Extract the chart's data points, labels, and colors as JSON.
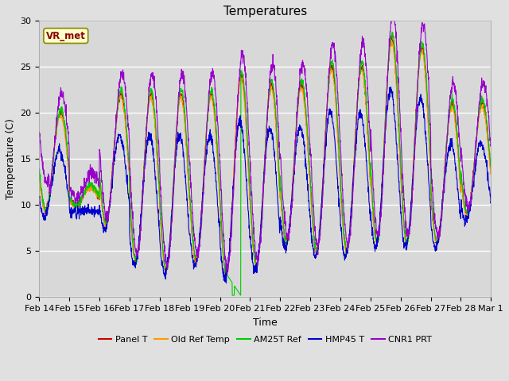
{
  "title": "Temperatures",
  "xlabel": "Time",
  "ylabel": "Temperature (C)",
  "ylim": [
    0,
    30
  ],
  "annotation": "VR_met",
  "fig_bg_color": "#e0e0e0",
  "plot_bg_color": "#d8d8d8",
  "series_colors": [
    "#cc0000",
    "#ff9900",
    "#00cc00",
    "#0000cc",
    "#9900cc"
  ],
  "series_labels": [
    "Panel T",
    "Old Ref Temp",
    "AM25T Ref",
    "HMP45 T",
    "CNR1 PRT"
  ],
  "tick_labels": [
    "Feb 14",
    "Feb 15",
    "Feb 16",
    "Feb 17",
    "Feb 18",
    "Feb 19",
    "Feb 20",
    "Feb 21",
    "Feb 22",
    "Feb 23",
    "Feb 24",
    "Feb 25",
    "Feb 26",
    "Feb 27",
    "Feb 28",
    "Mar 1"
  ],
  "title_fontsize": 11,
  "axis_label_fontsize": 9,
  "tick_fontsize": 8
}
